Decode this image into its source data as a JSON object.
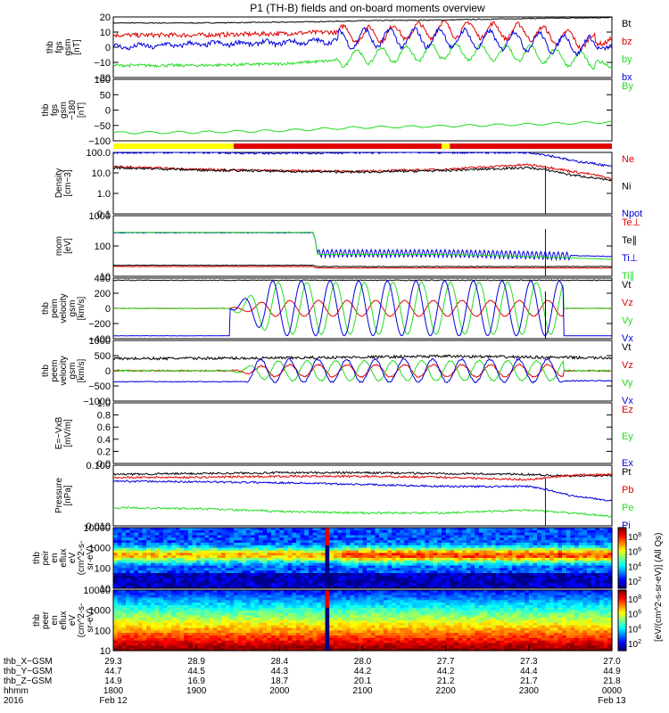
{
  "title": "P1 (TH-B) fields and on-board moments overview",
  "colors": {
    "black": "#000000",
    "red": "#e00000",
    "green": "#22dd22",
    "blue": "#0000dd",
    "yellow": "#ffff00"
  },
  "chart_data": [
    {
      "type": "line",
      "panel": "fgs_gsm",
      "ylabel": [
        "thb",
        "fgs",
        "gsm",
        "[nT]"
      ],
      "yticks": [
        "20",
        "10",
        "0",
        "−10",
        "−20"
      ],
      "ylim": [
        -20,
        20
      ],
      "series": [
        {
          "name": "Bt",
          "color": "black",
          "x": [
            0,
            1,
            2,
            2.6,
            3,
            4,
            5,
            5.9,
            6
          ],
          "y": [
            16,
            16,
            16.5,
            17,
            17.5,
            18,
            19,
            19.5,
            20
          ]
        },
        {
          "name": "bz",
          "color": "red",
          "x": [
            0,
            1,
            2,
            2.6,
            3,
            4,
            5,
            5.9,
            6
          ],
          "y": [
            8,
            8,
            9,
            10,
            8,
            12,
            10,
            2,
            6
          ]
        },
        {
          "name": "by",
          "color": "green",
          "x": [
            0,
            1,
            2,
            2.6,
            3,
            4,
            5,
            5.9,
            6
          ],
          "y": [
            -12,
            -12,
            -11,
            -9,
            -6,
            -3,
            -4,
            -10,
            -14
          ]
        },
        {
          "name": "bx",
          "color": "blue",
          "x": [
            0,
            1,
            2,
            2.6,
            3,
            4,
            5,
            5.9,
            6
          ],
          "y": [
            0,
            2,
            3,
            4,
            6,
            6,
            4,
            0,
            0
          ]
        }
      ]
    },
    {
      "type": "line",
      "panel": "fgs_gsm_80",
      "ylabel": [
        "thb",
        "fgs",
        "gsm",
        "−180",
        "[nT]"
      ],
      "yticks": [
        "100",
        "50",
        "0",
        "−50",
        "−100"
      ],
      "ylim": [
        -130,
        100
      ],
      "series": [
        {
          "name": "By",
          "color": "green",
          "x": [
            0,
            1,
            2,
            3,
            4,
            5,
            6
          ],
          "y": [
            -100,
            -98,
            -92,
            -80,
            -75,
            -68,
            -60
          ]
        }
      ]
    },
    {
      "type": "bar",
      "panel": "mode_bar",
      "segments": [
        {
          "color": "yellow",
          "x0": 0,
          "x1": 1.45
        },
        {
          "color": "red",
          "x0": 1.45,
          "x1": 3.95
        },
        {
          "color": "yellow",
          "x0": 3.95,
          "x1": 4.05
        },
        {
          "color": "red",
          "x0": 4.05,
          "x1": 6
        }
      ]
    },
    {
      "type": "line",
      "panel": "density",
      "ylabel": [
        "Density",
        "[cm−3]"
      ],
      "yticks": [
        "100.0",
        "10.0",
        "1.0",
        "0.1"
      ],
      "log": true,
      "ylim": [
        0.1,
        100
      ],
      "series": [
        {
          "name": "Ne",
          "color": "red",
          "x": [
            0,
            1,
            2,
            3,
            4,
            5,
            5.5,
            6
          ],
          "y": [
            20,
            15,
            13,
            12,
            15,
            25,
            12,
            5
          ]
        },
        {
          "name": "Ni",
          "color": "black",
          "x": [
            0,
            1,
            2,
            3,
            4,
            5,
            5.5,
            6
          ],
          "y": [
            18,
            14,
            12,
            11,
            13,
            18,
            8,
            4
          ]
        },
        {
          "name": "Npot",
          "color": "blue",
          "x": [
            0,
            1,
            2,
            3,
            4,
            5,
            5.5,
            6
          ],
          "y": [
            100,
            100,
            90,
            100,
            100,
            100,
            40,
            20
          ]
        }
      ]
    },
    {
      "type": "line",
      "panel": "mom_temp",
      "ylabel": [
        "mom",
        "[eV]"
      ],
      "yticks": [
        "1000",
        "100",
        "10"
      ],
      "log": true,
      "ylim": [
        5,
        3000
      ],
      "series": [
        {
          "name": "Te⊥",
          "color": "red",
          "x": [
            0,
            2.4,
            2.45,
            4,
            6
          ],
          "y": [
            14,
            14,
            12,
            12,
            12
          ]
        },
        {
          "name": "Te∥",
          "color": "black",
          "x": [
            0,
            2.4,
            2.45,
            4,
            6
          ],
          "y": [
            16,
            16,
            14,
            14,
            14
          ]
        },
        {
          "name": "Ti⊥",
          "color": "blue",
          "x": [
            0,
            2.4,
            2.45,
            4,
            6
          ],
          "y": [
            500,
            500,
            60,
            60,
            40
          ]
        },
        {
          "name": "Ti∥",
          "color": "green",
          "x": [
            0,
            2.4,
            2.45,
            4,
            6
          ],
          "y": [
            520,
            520,
            50,
            50,
            30
          ]
        }
      ]
    },
    {
      "type": "line",
      "panel": "peim_velocity",
      "ylabel": [
        "thb",
        "peim",
        "velocity",
        "gsm",
        "[km/s]"
      ],
      "yticks": [
        "400",
        "200",
        "0",
        "−200",
        "−400"
      ],
      "ylim": [
        -420,
        420
      ],
      "series": [
        {
          "name": "Vt",
          "color": "black",
          "x": [
            0,
            2,
            4,
            6
          ],
          "y": [
            390,
            390,
            390,
            390
          ]
        },
        {
          "name": "Vz",
          "color": "red",
          "x": [
            0,
            2,
            4,
            6
          ],
          "y": [
            0,
            0,
            0,
            0
          ]
        },
        {
          "name": "Vy",
          "color": "green",
          "x": [
            0,
            2,
            4,
            6
          ],
          "y": [
            0,
            0,
            0,
            0
          ]
        },
        {
          "name": "Vx",
          "color": "blue",
          "x": [
            0,
            2,
            4,
            6
          ],
          "y": [
            -380,
            -380,
            -380,
            -380
          ]
        }
      ]
    },
    {
      "type": "line",
      "panel": "peem_velocity",
      "ylabel": [
        "thb",
        "peem",
        "velocity",
        "gsm",
        "[km/s]"
      ],
      "yticks": [
        "1000",
        "500",
        "0",
        "−500",
        "−1000"
      ],
      "ylim": [
        -1000,
        1000
      ],
      "series": [
        {
          "name": "Vt",
          "color": "black",
          "x": [
            0,
            2,
            4,
            6
          ],
          "y": [
            400,
            420,
            480,
            420
          ]
        },
        {
          "name": "Vz",
          "color": "red",
          "x": [
            0,
            2,
            4,
            6
          ],
          "y": [
            0,
            0,
            0,
            0
          ]
        },
        {
          "name": "Vy",
          "color": "green",
          "x": [
            0,
            2,
            4,
            6
          ],
          "y": [
            0,
            0,
            0,
            0
          ]
        },
        {
          "name": "Vx",
          "color": "blue",
          "x": [
            0,
            2,
            4,
            6
          ],
          "y": [
            -350,
            -350,
            -350,
            -350
          ]
        }
      ]
    },
    {
      "type": "line",
      "panel": "efield",
      "ylabel": [
        "E=−VxB",
        "[mV/m]"
      ],
      "yticks": [
        "1.0",
        "0.8",
        "0.6",
        "0.4",
        "0.2",
        "0.0"
      ],
      "ylim": [
        0,
        1
      ],
      "series": [
        {
          "name": "Ez",
          "color": "red",
          "x": [],
          "y": []
        },
        {
          "name": "Ey",
          "color": "green",
          "x": [],
          "y": []
        },
        {
          "name": "Ex",
          "color": "blue",
          "x": [],
          "y": []
        }
      ]
    },
    {
      "type": "line",
      "panel": "pressure",
      "ylabel": [
        "Pressure",
        "[nPa]"
      ],
      "yticks": [
        "0.100",
        "0.010"
      ],
      "log": true,
      "ylim": [
        0.003,
        0.3
      ],
      "series": [
        {
          "name": "Pt",
          "color": "black",
          "x": [
            0,
            1,
            2,
            3,
            4,
            5,
            5.5,
            6
          ],
          "y": [
            0.15,
            0.16,
            0.17,
            0.17,
            0.16,
            0.15,
            0.13,
            0.14
          ]
        },
        {
          "name": "Pb",
          "color": "red",
          "x": [
            0,
            1,
            2,
            3,
            4,
            5,
            5.5,
            6
          ],
          "y": [
            0.12,
            0.12,
            0.13,
            0.13,
            0.12,
            0.1,
            0.14,
            0.15
          ]
        },
        {
          "name": "Pe",
          "color": "green",
          "x": [
            0,
            1,
            2,
            3,
            4,
            5,
            5.5,
            6
          ],
          "y": [
            0.012,
            0.011,
            0.009,
            0.008,
            0.008,
            0.01,
            0.008,
            0.006
          ]
        },
        {
          "name": "Pi",
          "color": "blue",
          "x": [
            0,
            1,
            2,
            3,
            4,
            5,
            5.5,
            6
          ],
          "y": [
            0.09,
            0.085,
            0.08,
            0.07,
            0.06,
            0.06,
            0.03,
            0.02
          ]
        }
      ]
    },
    {
      "type": "heatmap",
      "panel": "peir_spec",
      "ylabel": [
        "thb",
        "peir",
        "en",
        "eflux",
        "eV",
        "(cm^2-s-",
        "sr-eV)"
      ],
      "yticks": [
        "10000",
        "1000",
        "100",
        "10"
      ],
      "log": true,
      "ylim": [
        6,
        25000
      ]
    },
    {
      "type": "heatmap",
      "panel": "peer_spec",
      "ylabel": [
        "thb",
        "peer",
        "en",
        "eflux",
        "eV",
        "(cm^2-s-",
        "sr-eV)"
      ],
      "yticks": [
        "10000",
        "1000",
        "100",
        "10"
      ],
      "log": true,
      "ylim": [
        6,
        25000
      ]
    }
  ],
  "colorbars": [
    {
      "ticks": [
        "10^8",
        "10^6",
        "10^4",
        "10^2"
      ]
    },
    {
      "ticks": [
        "10^8",
        "10^6",
        "10^4",
        "10^2"
      ]
    }
  ],
  "colorbar_label": "[eV/(cm^2-s-sr-eV)] (All Qs)",
  "xaxis": {
    "rows": [
      {
        "label": "thb_X−GSM",
        "values": [
          "29.3",
          "28.9",
          "28.4",
          "28.0",
          "27.7",
          "27.3",
          "27.0"
        ]
      },
      {
        "label": "thb_Y−GSM",
        "values": [
          "44.7",
          "44.5",
          "44.3",
          "44.2",
          "44.2",
          "44.4",
          "44.9"
        ]
      },
      {
        "label": "thb_Z−GSM",
        "values": [
          "14.9",
          "16.9",
          "18.7",
          "20.1",
          "21.2",
          "21.7",
          "21.8"
        ]
      },
      {
        "label": "hhmm",
        "values": [
          "1800",
          "1900",
          "2000",
          "2100",
          "2200",
          "2300",
          "0000"
        ]
      },
      {
        "label": "2016",
        "values": [
          "Feb 12",
          "",
          "",
          "",
          "",
          "",
          "Feb 13"
        ]
      }
    ]
  }
}
